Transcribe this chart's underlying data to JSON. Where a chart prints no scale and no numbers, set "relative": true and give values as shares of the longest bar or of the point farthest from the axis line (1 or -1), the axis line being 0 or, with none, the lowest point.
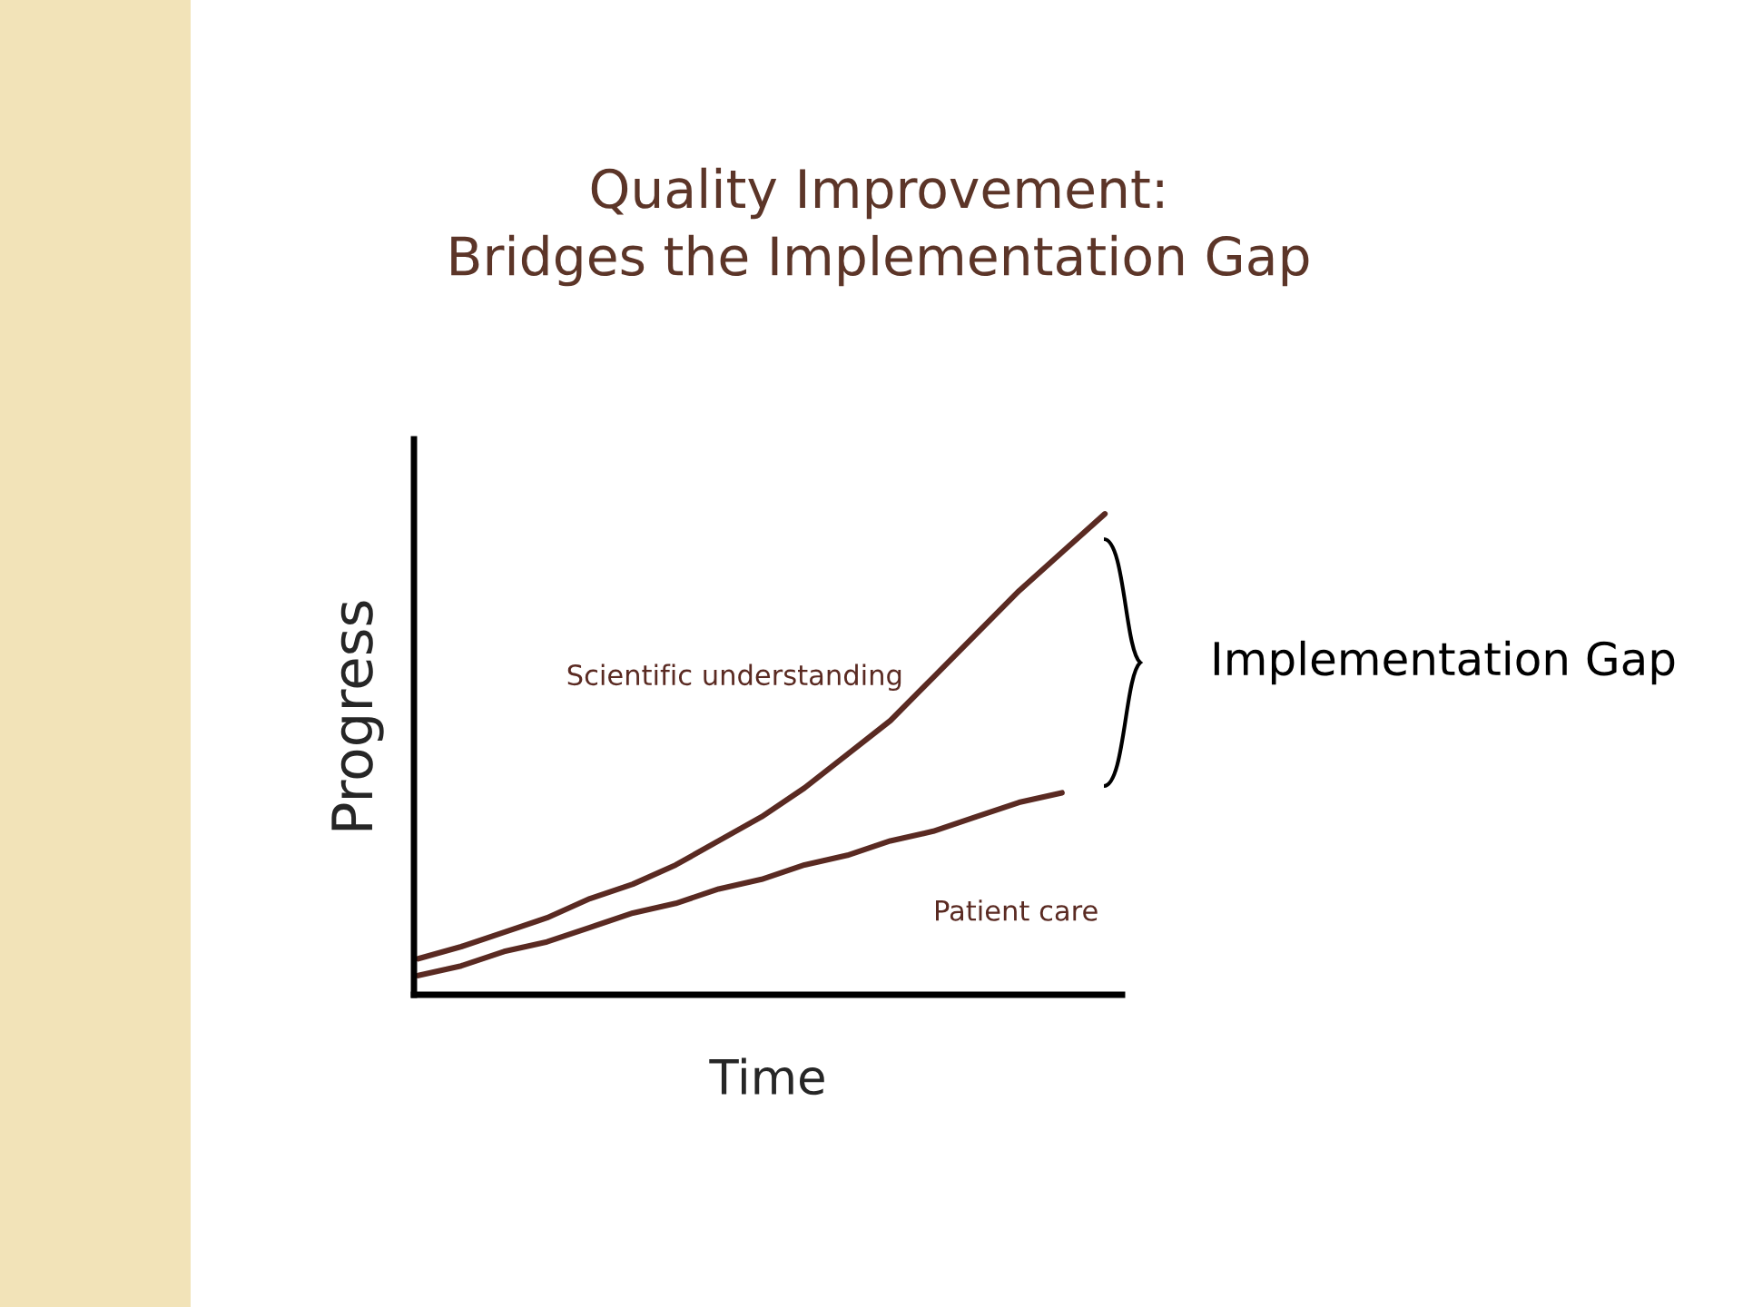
{
  "chart_data": {
    "type": "line",
    "title": "Quality Improvement:\nBridges the Implementation Gap",
    "xlabel": "Time",
    "ylabel": "Progress",
    "relative": true,
    "categories": [
      null,
      null,
      null,
      null,
      null,
      null,
      null,
      null,
      null,
      null,
      null,
      null,
      null,
      null,
      null,
      null,
      null
    ],
    "series": [
      {
        "name": "Scientific understanding",
        "color": "#5a2a22",
        "values": [
          0.075,
          0.1,
          0.13,
          0.16,
          0.2,
          0.23,
          0.27,
          0.32,
          0.37,
          0.43,
          0.5,
          0.57,
          0.66,
          0.75,
          0.84,
          0.92,
          1.0
        ]
      },
      {
        "name": "Patient care",
        "color": "#5a2a22",
        "values": [
          0.04,
          0.06,
          0.09,
          0.11,
          0.14,
          0.17,
          0.19,
          0.22,
          0.24,
          0.27,
          0.29,
          0.32,
          0.34,
          0.37,
          0.4,
          0.42,
          null
        ]
      }
    ],
    "annotations": [
      "Implementation Gap"
    ],
    "legend": false,
    "marker": "none",
    "line_style": "solid"
  }
}
